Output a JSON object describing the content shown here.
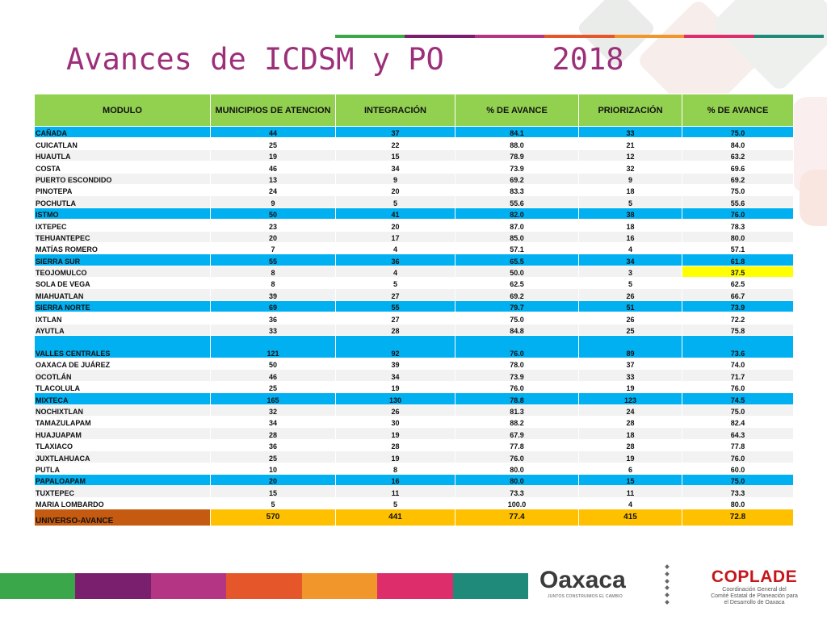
{
  "title": "Avances de ICDSM y PO      2018",
  "colors": {
    "header_green": "#92d050",
    "region_blue": "#00b0f0",
    "total_orange": "#ffc000",
    "total_label_brown": "#c55a11",
    "highlight_yellow": "#ffff00",
    "title_purple": "#9c2f7a",
    "stripe": [
      "#3aa84a",
      "#7a1f6e",
      "#b53585",
      "#e5572b",
      "#f0962a",
      "#dd2e6b",
      "#1f8a7a"
    ]
  },
  "table": {
    "headers": [
      "MODULO",
      "MUNICIPIOS DE ATENCION",
      "INTEGRACIÓN",
      "% DE AVANCE",
      "PRIORIZACIÓN",
      "% DE AVANCE"
    ],
    "rows": [
      {
        "name": "CAÑADA",
        "mun": "44",
        "int": "37",
        "pa1": "84.1",
        "pri": "33",
        "pa2": "75.0",
        "type": "region"
      },
      {
        "name": "CUICATLAN",
        "mun": "25",
        "int": "22",
        "pa1": "88.0",
        "pri": "21",
        "pa2": "84.0",
        "type": "item"
      },
      {
        "name": "HUAUTLA",
        "mun": "19",
        "int": "15",
        "pa1": "78.9",
        "pri": "12",
        "pa2": "63.2",
        "type": "item"
      },
      {
        "name": "COSTA",
        "mun": "46",
        "int": "34",
        "pa1": "73.9",
        "pri": "32",
        "pa2": "69.6",
        "type": "item"
      },
      {
        "name": "PUERTO ESCONDIDO",
        "mun": "13",
        "int": "9",
        "pa1": "69.2",
        "pri": "9",
        "pa2": "69.2",
        "type": "item"
      },
      {
        "name": "PINOTEPA",
        "mun": "24",
        "int": "20",
        "pa1": "83.3",
        "pri": "18",
        "pa2": "75.0",
        "type": "item"
      },
      {
        "name": "POCHUTLA",
        "mun": "9",
        "int": "5",
        "pa1": "55.6",
        "pri": "5",
        "pa2": "55.6",
        "type": "item"
      },
      {
        "name": "ISTMO",
        "mun": "50",
        "int": "41",
        "pa1": "82.0",
        "pri": "38",
        "pa2": "76.0",
        "type": "region"
      },
      {
        "name": "IXTEPEC",
        "mun": "23",
        "int": "20",
        "pa1": "87.0",
        "pri": "18",
        "pa2": "78.3",
        "type": "item"
      },
      {
        "name": "TEHUANTEPEC",
        "mun": "20",
        "int": "17",
        "pa1": "85.0",
        "pri": "16",
        "pa2": "80.0",
        "type": "item"
      },
      {
        "name": "MATÍAS ROMERO",
        "mun": "7",
        "int": "4",
        "pa1": "57.1",
        "pri": "4",
        "pa2": "57.1",
        "type": "item"
      },
      {
        "name": "SIERRA SUR",
        "mun": "55",
        "int": "36",
        "pa1": "65.5",
        "pri": "34",
        "pa2": "61.8",
        "type": "region"
      },
      {
        "name": "TEOJOMULCO",
        "mun": "8",
        "int": "4",
        "pa1": "50.0",
        "pri": "3",
        "pa2": "37.5",
        "type": "item",
        "highlight": true
      },
      {
        "name": "SOLA DE VEGA",
        "mun": "8",
        "int": "5",
        "pa1": "62.5",
        "pri": "5",
        "pa2": "62.5",
        "type": "item"
      },
      {
        "name": "MIAHUATLAN",
        "mun": "39",
        "int": "27",
        "pa1": "69.2",
        "pri": "26",
        "pa2": "66.7",
        "type": "item"
      },
      {
        "name": "SIERRA NORTE",
        "mun": "69",
        "int": "55",
        "pa1": "79.7",
        "pri": "51",
        "pa2": "73.9",
        "type": "region"
      },
      {
        "name": "IXTLAN",
        "mun": "36",
        "int": "27",
        "pa1": "75.0",
        "pri": "26",
        "pa2": "72.2",
        "type": "item"
      },
      {
        "name": "AYUTLA",
        "mun": "33",
        "int": "28",
        "pa1": "84.8",
        "pri": "25",
        "pa2": "75.8",
        "type": "item"
      },
      {
        "name": "VALLES CENTRALES",
        "mun": "121",
        "int": "92",
        "pa1": "76.0",
        "pri": "89",
        "pa2": "73.6",
        "type": "region",
        "tall": true
      },
      {
        "name": "OAXACA DE JUÁREZ",
        "mun": "50",
        "int": "39",
        "pa1": "78.0",
        "pri": "37",
        "pa2": "74.0",
        "type": "item"
      },
      {
        "name": "OCOTLÁN",
        "mun": "46",
        "int": "34",
        "pa1": "73.9",
        "pri": "33",
        "pa2": "71.7",
        "type": "item"
      },
      {
        "name": "TLACOLULA",
        "mun": "25",
        "int": "19",
        "pa1": "76.0",
        "pri": "19",
        "pa2": "76.0",
        "type": "item"
      },
      {
        "name": "MIXTECA",
        "mun": "165",
        "int": "130",
        "pa1": "78.8",
        "pri": "123",
        "pa2": "74.5",
        "type": "region"
      },
      {
        "name": "NOCHIXTLAN",
        "mun": "32",
        "int": "26",
        "pa1": "81.3",
        "pri": "24",
        "pa2": "75.0",
        "type": "item"
      },
      {
        "name": "TAMAZULAPAM",
        "mun": "34",
        "int": "30",
        "pa1": "88.2",
        "pri": "28",
        "pa2": "82.4",
        "type": "item"
      },
      {
        "name": "HUAJUAPAM",
        "mun": "28",
        "int": "19",
        "pa1": "67.9",
        "pri": "18",
        "pa2": "64.3",
        "type": "item"
      },
      {
        "name": "TLAXIACO",
        "mun": "36",
        "int": "28",
        "pa1": "77.8",
        "pri": "28",
        "pa2": "77.8",
        "type": "item"
      },
      {
        "name": "JUXTLAHUACA",
        "mun": "25",
        "int": "19",
        "pa1": "76.0",
        "pri": "19",
        "pa2": "76.0",
        "type": "item"
      },
      {
        "name": "PUTLA",
        "mun": "10",
        "int": "8",
        "pa1": "80.0",
        "pri": "6",
        "pa2": "60.0",
        "type": "item"
      },
      {
        "name": "PAPALOAPAM",
        "mun": "20",
        "int": "16",
        "pa1": "80.0",
        "pri": "15",
        "pa2": "75.0",
        "type": "region"
      },
      {
        "name": "TUXTEPEC",
        "mun": "15",
        "int": "11",
        "pa1": "73.3",
        "pri": "11",
        "pa2": "73.3",
        "type": "item"
      },
      {
        "name": "MARIA LOMBARDO",
        "mun": "5",
        "int": "5",
        "pa1": "100.0",
        "pri": "4",
        "pa2": "80.0",
        "type": "item"
      }
    ],
    "total": {
      "name": "UNIVERSO-AVANCE",
      "mun": "570",
      "int": "441",
      "pa1": "77.4",
      "pri": "415",
      "pa2": "72.8"
    }
  },
  "footer": {
    "oaxaca_logo_text": "Oaxaca",
    "oaxaca_tagline": "JUNTOS CONSTRUIMOS EL CAMBIO",
    "coplade_name": "COPLADE",
    "coplade_line1": "Coordinación General del",
    "coplade_line2": "Comité Estatal de Planeación para",
    "coplade_line3": "el Desarrollo de Oaxaca"
  }
}
